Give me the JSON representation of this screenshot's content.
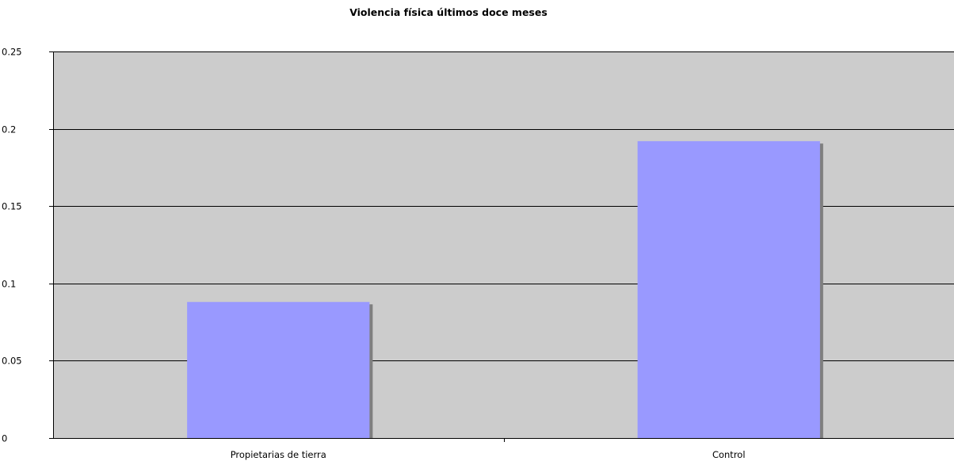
{
  "chart_data": {
    "type": "bar",
    "title": "Violencia física últimos doce meses",
    "xlabel": "",
    "ylabel": "",
    "categories": [
      "Propietarias de tierra",
      "Control"
    ],
    "series": [
      {
        "values": [
          0.088,
          0.192
        ]
      }
    ],
    "ylim": [
      0,
      0.25
    ],
    "yticks": [
      0,
      0.05,
      0.1,
      0.15,
      0.2,
      0.25
    ],
    "ytick_labels": [
      "0",
      "0.05",
      "0.1",
      "0.15",
      "0.2",
      "0.25"
    ],
    "grid": true,
    "legend": "none",
    "colors": {
      "plot_background": "#cccccc",
      "bar_fill": "#9999ff",
      "bar_shadow": "#7f7f7f",
      "gridline": "#000000",
      "axis": "#000000",
      "text": "#000000"
    }
  }
}
